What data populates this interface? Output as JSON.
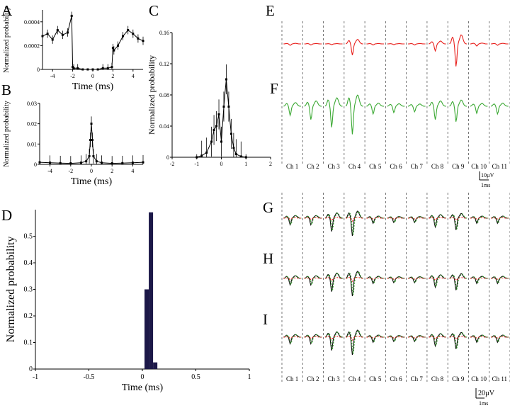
{
  "panel_labels": [
    "A",
    "B",
    "C",
    "D",
    "E",
    "F",
    "G",
    "H",
    "I"
  ],
  "colors": {
    "red": "#e8201c",
    "green": "#3aa832",
    "black": "#111111",
    "bar": "#1c1848"
  },
  "chart_data": [
    {
      "id": "A",
      "type": "line",
      "xlabel": "Time (ms)",
      "ylabel": "Normalized probability",
      "xlim": [
        -5,
        5
      ],
      "ylim": [
        0,
        0.0005
      ],
      "xticks": [
        "-4",
        "-2",
        "0",
        "2",
        "4"
      ],
      "yticks": [
        "0",
        "0.0002",
        "0.0004"
      ],
      "x": [
        -5,
        -4.5,
        -4,
        -3.5,
        -3,
        -2.5,
        -2.1,
        -2.0,
        -1.9,
        -1.5,
        -1,
        -0.5,
        0,
        0.5,
        1,
        1.5,
        1.9,
        2.0,
        2.1,
        2.5,
        3,
        3.5,
        4,
        4.5,
        5
      ],
      "values": [
        0.00028,
        0.0003,
        0.00025,
        0.00033,
        0.00029,
        0.00031,
        0.00045,
        2e-05,
        1e-05,
        1e-05,
        0.0,
        0.0,
        0.0,
        0.0,
        1e-05,
        1e-05,
        2e-05,
        0.00018,
        0.00016,
        0.0002,
        0.00028,
        0.00033,
        0.0003,
        0.00026,
        0.00024
      ]
    },
    {
      "id": "B",
      "type": "line",
      "xlabel": "Time (ms)",
      "ylabel": "Normalized probability",
      "xlim": [
        -5,
        5
      ],
      "ylim": [
        0,
        0.03
      ],
      "xticks": [
        "-4",
        "-2",
        "0",
        "2",
        "4"
      ],
      "yticks": [
        "0",
        "0.01",
        "0.02",
        "0.03"
      ],
      "x": [
        -5,
        -4,
        -3,
        -2,
        -1,
        -0.5,
        -0.2,
        -0.1,
        0,
        0.1,
        0.2,
        0.5,
        1,
        2,
        3,
        4,
        5
      ],
      "values": [
        0.001,
        0.0008,
        0.0006,
        0.0005,
        0.0008,
        0.0015,
        0.004,
        0.012,
        0.02,
        0.012,
        0.004,
        0.0015,
        0.0008,
        0.0005,
        0.0006,
        0.0008,
        0.001
      ]
    },
    {
      "id": "C",
      "type": "line",
      "xlabel": "",
      "ylabel": "Normalized probability",
      "xlim": [
        -2,
        2
      ],
      "ylim": [
        0,
        0.16
      ],
      "xticks": [
        "-2",
        "-1",
        "0",
        "1",
        "2"
      ],
      "yticks": [
        "0",
        "0.04",
        "0.08",
        "0.12",
        "0.16"
      ],
      "x": [
        -1.0,
        -0.8,
        -0.6,
        -0.4,
        -0.3,
        -0.2,
        -0.1,
        0.0,
        0.1,
        0.2,
        0.3,
        0.4,
        0.5,
        0.6,
        0.8,
        1.0
      ],
      "values": [
        0.0,
        0.002,
        0.006,
        0.02,
        0.035,
        0.04,
        0.055,
        0.02,
        0.065,
        0.1,
        0.065,
        0.03,
        0.012,
        0.004,
        0.001,
        0.0
      ]
    },
    {
      "id": "D",
      "type": "bar",
      "xlabel": "Time (ms)",
      "ylabel": "Normalized probability",
      "xlim": [
        -1,
        1
      ],
      "ylim": [
        0,
        0.6
      ],
      "xticks": [
        "-1",
        "-0.5",
        "0",
        "0.5",
        "1"
      ],
      "yticks": [
        "0",
        "0.1",
        "0.2",
        "0.3",
        "0.4",
        "0.5"
      ],
      "bin_width": 0.04,
      "x": [
        0.04,
        0.08,
        0.12
      ],
      "values": [
        0.3,
        0.59,
        0.025
      ]
    }
  ],
  "waveforms": {
    "channels": [
      "Ch 1",
      "Ch 2",
      "Ch 3",
      "Ch 4",
      "Ch 5",
      "Ch 6",
      "Ch 7",
      "Ch 8",
      "Ch 9",
      "Ch 10",
      "Ch 11"
    ],
    "E_amp": [
      0.2,
      0.15,
      0.1,
      1.6,
      0.15,
      0.1,
      0.15,
      1.0,
      3.2,
      0.3,
      0.2
    ],
    "F_amp": [
      1.3,
      1.9,
      3.0,
      4.0,
      1.1,
      0.9,
      0.8,
      1.9,
      2.2,
      1.0,
      1.1
    ],
    "G_amp": [
      0.9,
      0.9,
      1.8,
      2.4,
      0.7,
      0.6,
      0.6,
      1.2,
      1.6,
      0.7,
      0.7
    ],
    "scale_top": "10µV",
    "scale_top_time": "1ms",
    "scale_bottom": "20µV",
    "scale_bottom_time": "1ms"
  }
}
